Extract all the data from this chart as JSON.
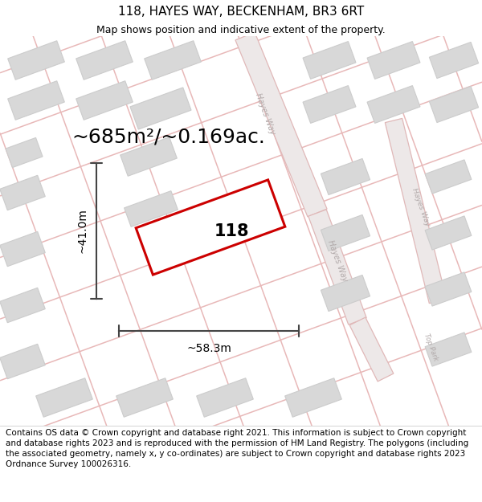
{
  "title_line1": "118, HAYES WAY, BECKENHAM, BR3 6RT",
  "title_line2": "Map shows position and indicative extent of the property.",
  "area_text": "~685m²/~0.169ac.",
  "width_label": "~58.3m",
  "height_label": "~41.0m",
  "number_label": "118",
  "footer_text": "Contains OS data © Crown copyright and database right 2021. This information is subject to Crown copyright and database rights 2023 and is reproduced with the permission of HM Land Registry. The polygons (including the associated geometry, namely x, y co-ordinates) are subject to Crown copyright and database rights 2023 Ordnance Survey 100026316.",
  "map_bg": "#f5f0f0",
  "road_fill": "#ede8e8",
  "road_line": "#e8b8b8",
  "building_fill": "#d8d8d8",
  "building_edge": "#cccccc",
  "property_red": "#cc0000",
  "dim_color": "#444444",
  "road_label_color": "#b0a8a8",
  "title_fs": 11,
  "subtitle_fs": 9,
  "area_fs": 18,
  "dim_fs": 10,
  "num_fs": 15,
  "footer_fs": 7.5
}
